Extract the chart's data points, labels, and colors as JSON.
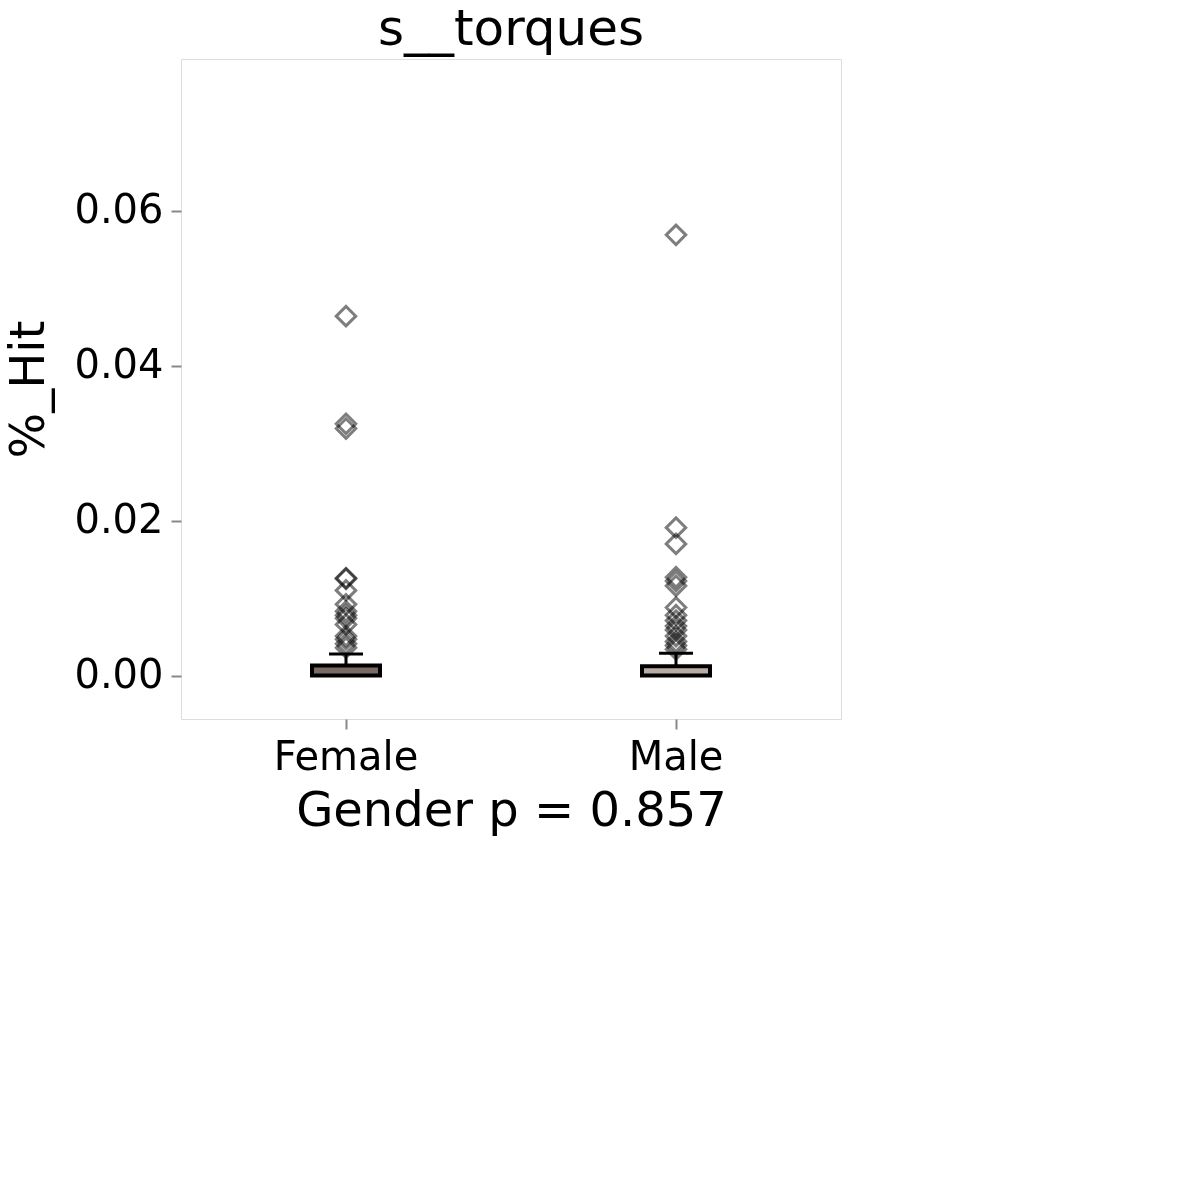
{
  "chart_data": {
    "type": "box",
    "title": "s__torques",
    "xlabel": "Gender p = 0.857",
    "ylabel": "%_Hit",
    "categories": [
      "Female",
      "Male"
    ],
    "colors": [
      "#7a6a66",
      "#b9aca4"
    ],
    "boxes": [
      {
        "low": 0,
        "q1": 0,
        "median": 0,
        "q3": 0.0013,
        "high": 0.0028,
        "outliers": [
          0.0464,
          0.0325,
          0.0319,
          0.0126,
          0.0125,
          0.011,
          0.0092,
          0.0083,
          0.0078,
          0.0074,
          0.0066,
          0.0051,
          0.0047,
          0.0041,
          0.0036
        ]
      },
      {
        "low": 0,
        "q1": 0,
        "median": 0,
        "q3": 0.0012,
        "high": 0.0029,
        "outliers": [
          0.0569,
          0.0191,
          0.017,
          0.0127,
          0.0122,
          0.0116,
          0.0088,
          0.0078,
          0.0071,
          0.0064,
          0.0059,
          0.0051,
          0.0044,
          0.0039,
          0.0034
        ]
      }
    ],
    "ylim": [
      -0.0056,
      0.0796
    ],
    "yticks": [
      {
        "value": 0,
        "label": "0.00"
      },
      {
        "value": 0.02,
        "label": "0.02"
      },
      {
        "value": 0.04,
        "label": "0.04"
      },
      {
        "value": 0.06,
        "label": "0.06"
      }
    ],
    "marker": "diamond",
    "grid": false
  }
}
